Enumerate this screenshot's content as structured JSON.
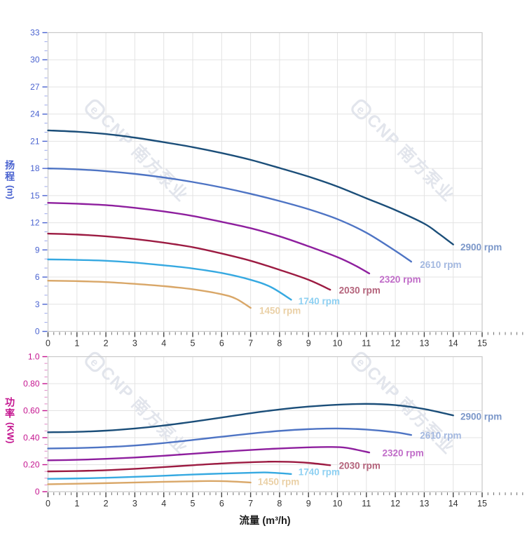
{
  "axes": {
    "flow_title": "流量 (m³/h)",
    "head_title": "扬程",
    "head_unit": "(m)",
    "power_title": "功率",
    "power_unit": "(KW)"
  },
  "watermark": {
    "logo_letter": "e",
    "text": "CNP 南方泵业",
    "color": "#e2e5ec"
  },
  "style": {
    "grid_color": "#e3e3e3",
    "border_color": "#c9c9c9",
    "x_tick_color": "#444444",
    "x_minor_tick_color": "#6e6e6e",
    "x_label_color": "#333333",
    "background": "#ffffff"
  },
  "chart_data": [
    {
      "type": "line",
      "title": "head_vs_flow",
      "xlabel": "流量 (m³/h)",
      "ylabel": "扬程 (m)",
      "x": {
        "min": 0,
        "max": 15,
        "major": 1,
        "minor": 0.2,
        "tick_labels": [
          "0",
          "1",
          "2",
          "3",
          "4",
          "5",
          "6",
          "7",
          "8",
          "9",
          "10",
          "11",
          "12",
          "13",
          "14",
          "15"
        ]
      },
      "y": {
        "min": 0,
        "max": 33,
        "major": 3,
        "minor": 1,
        "color": "#4a63d0",
        "minor_color": "#98a5ea",
        "tick_labels": [
          "0",
          "3",
          "6",
          "9",
          "12",
          "15",
          "18",
          "21",
          "24",
          "27",
          "30",
          "33"
        ]
      },
      "series": [
        {
          "name": "2900 rpm",
          "color": "#1b4e79",
          "label_color": "#7b97c9",
          "label_at": [
            14.25,
            9.3
          ],
          "points": [
            [
              0,
              22.2
            ],
            [
              1,
              22.05
            ],
            [
              2,
              21.8
            ],
            [
              3,
              21.4
            ],
            [
              4,
              20.9
            ],
            [
              5,
              20.35
            ],
            [
              6,
              19.7
            ],
            [
              7,
              18.95
            ],
            [
              8,
              18.05
            ],
            [
              9,
              17.1
            ],
            [
              10,
              16.0
            ],
            [
              11,
              14.7
            ],
            [
              12,
              13.4
            ],
            [
              13,
              11.9
            ],
            [
              13.5,
              10.8
            ],
            [
              14,
              9.6
            ]
          ]
        },
        {
          "name": "2610 rpm",
          "color": "#4e74c4",
          "label_color": "#a3b8e0",
          "label_at": [
            12.85,
            7.35
          ],
          "points": [
            [
              0,
              18.0
            ],
            [
              1,
              17.9
            ],
            [
              2,
              17.7
            ],
            [
              3,
              17.4
            ],
            [
              4,
              17.0
            ],
            [
              5,
              16.5
            ],
            [
              6,
              15.9
            ],
            [
              7,
              15.2
            ],
            [
              8,
              14.4
            ],
            [
              9,
              13.5
            ],
            [
              10,
              12.4
            ],
            [
              11,
              10.9
            ],
            [
              12,
              8.9
            ],
            [
              12.55,
              7.7
            ]
          ]
        },
        {
          "name": "2320 rpm",
          "color": "#8e1f9e",
          "label_color": "#c06cc8",
          "label_at": [
            11.45,
            5.75
          ],
          "points": [
            [
              0,
              14.2
            ],
            [
              1,
              14.1
            ],
            [
              2,
              13.95
            ],
            [
              3,
              13.65
            ],
            [
              4,
              13.25
            ],
            [
              5,
              12.75
            ],
            [
              6,
              12.1
            ],
            [
              7,
              11.4
            ],
            [
              8,
              10.5
            ],
            [
              9,
              9.4
            ],
            [
              10,
              8.2
            ],
            [
              10.6,
              7.3
            ],
            [
              11.1,
              6.4
            ]
          ]
        },
        {
          "name": "2030 rpm",
          "color": "#9c1b42",
          "label_color": "#b4637b",
          "label_at": [
            10.05,
            4.55
          ],
          "points": [
            [
              0,
              10.8
            ],
            [
              1,
              10.7
            ],
            [
              2,
              10.5
            ],
            [
              3,
              10.2
            ],
            [
              4,
              9.8
            ],
            [
              5,
              9.3
            ],
            [
              6,
              8.6
            ],
            [
              7,
              7.8
            ],
            [
              8,
              6.8
            ],
            [
              9,
              5.7
            ],
            [
              9.75,
              4.6
            ]
          ]
        },
        {
          "name": "1740 rpm",
          "color": "#36a9e1",
          "label_color": "#8ed0f2",
          "label_at": [
            8.65,
            3.35
          ],
          "points": [
            [
              0,
              7.95
            ],
            [
              1,
              7.9
            ],
            [
              2,
              7.8
            ],
            [
              3,
              7.6
            ],
            [
              4,
              7.3
            ],
            [
              5,
              6.95
            ],
            [
              6,
              6.45
            ],
            [
              7,
              5.7
            ],
            [
              7.7,
              4.9
            ],
            [
              8.4,
              3.5
            ]
          ]
        },
        {
          "name": "1450 rpm",
          "color": "#d9a768",
          "label_color": "#ead0a6",
          "label_at": [
            7.3,
            2.3
          ],
          "points": [
            [
              0,
              5.6
            ],
            [
              1,
              5.55
            ],
            [
              2,
              5.45
            ],
            [
              3,
              5.25
            ],
            [
              4,
              5.0
            ],
            [
              5,
              4.65
            ],
            [
              6,
              4.1
            ],
            [
              6.5,
              3.6
            ],
            [
              7,
              2.6
            ]
          ]
        }
      ]
    },
    {
      "type": "line",
      "title": "power_vs_flow",
      "xlabel": "流量 (m³/h)",
      "ylabel": "功率 (KW)",
      "x": {
        "min": 0,
        "max": 15,
        "major": 1,
        "minor": 0.2,
        "tick_labels": [
          "0",
          "1",
          "2",
          "3",
          "4",
          "5",
          "6",
          "7",
          "8",
          "9",
          "10",
          "11",
          "12",
          "13",
          "14",
          "15"
        ]
      },
      "y": {
        "min": 0,
        "max": 1.0,
        "major": 0.2,
        "minor": 0.05,
        "color": "#c4148f",
        "minor_color": "#df84c4",
        "tick_labels": [
          "0",
          "0.20",
          "0.40",
          "0.60",
          "0.80",
          "1.0"
        ]
      },
      "series": [
        {
          "name": "2900 rpm",
          "color": "#1b4e79",
          "label_color": "#7b97c9",
          "label_at": [
            14.25,
            0.555
          ],
          "points": [
            [
              0,
              0.44
            ],
            [
              1,
              0.443
            ],
            [
              2,
              0.452
            ],
            [
              3,
              0.468
            ],
            [
              4,
              0.49
            ],
            [
              5,
              0.518
            ],
            [
              6,
              0.549
            ],
            [
              7,
              0.581
            ],
            [
              8,
              0.609
            ],
            [
              9,
              0.63
            ],
            [
              10,
              0.644
            ],
            [
              11,
              0.65
            ],
            [
              12,
              0.641
            ],
            [
              13,
              0.612
            ],
            [
              14,
              0.565
            ]
          ]
        },
        {
          "name": "2610 rpm",
          "color": "#4e74c4",
          "label_color": "#a3b8e0",
          "label_at": [
            12.85,
            0.415
          ],
          "points": [
            [
              0,
              0.32
            ],
            [
              1,
              0.323
            ],
            [
              2,
              0.33
            ],
            [
              3,
              0.342
            ],
            [
              4,
              0.36
            ],
            [
              5,
              0.383
            ],
            [
              6,
              0.407
            ],
            [
              7,
              0.43
            ],
            [
              8,
              0.45
            ],
            [
              9,
              0.463
            ],
            [
              10,
              0.468
            ],
            [
              11,
              0.46
            ],
            [
              12,
              0.44
            ],
            [
              12.55,
              0.42
            ]
          ]
        },
        {
          "name": "2320 rpm",
          "color": "#8e1f9e",
          "label_color": "#c06cc8",
          "label_at": [
            11.55,
            0.285
          ],
          "points": [
            [
              0,
              0.232
            ],
            [
              1,
              0.236
            ],
            [
              2,
              0.243
            ],
            [
              3,
              0.253
            ],
            [
              4,
              0.266
            ],
            [
              5,
              0.281
            ],
            [
              6,
              0.296
            ],
            [
              7,
              0.309
            ],
            [
              8,
              0.32
            ],
            [
              9,
              0.328
            ],
            [
              9.7,
              0.331
            ],
            [
              10.3,
              0.325
            ],
            [
              11.1,
              0.29
            ]
          ]
        },
        {
          "name": "2030 rpm",
          "color": "#9c1b42",
          "label_color": "#b4637b",
          "label_at": [
            10.05,
            0.193
          ],
          "points": [
            [
              0,
              0.15
            ],
            [
              1,
              0.153
            ],
            [
              2,
              0.159
            ],
            [
              3,
              0.169
            ],
            [
              4,
              0.182
            ],
            [
              5,
              0.196
            ],
            [
              6,
              0.209
            ],
            [
              7,
              0.218
            ],
            [
              7.6,
              0.222
            ],
            [
              8.3,
              0.221
            ],
            [
              9,
              0.213
            ],
            [
              9.75,
              0.196
            ]
          ]
        },
        {
          "name": "1740 rpm",
          "color": "#36a9e1",
          "label_color": "#8ed0f2",
          "label_at": [
            8.65,
            0.145
          ],
          "points": [
            [
              0,
              0.095
            ],
            [
              1,
              0.098
            ],
            [
              2,
              0.103
            ],
            [
              3,
              0.11
            ],
            [
              4,
              0.118
            ],
            [
              5,
              0.127
            ],
            [
              6,
              0.134
            ],
            [
              7,
              0.14
            ],
            [
              7.6,
              0.142
            ],
            [
              8.4,
              0.131
            ]
          ]
        },
        {
          "name": "1450 rpm",
          "color": "#d9a768",
          "label_color": "#ead0a6",
          "label_at": [
            7.25,
            0.073
          ],
          "points": [
            [
              0,
              0.055
            ],
            [
              1,
              0.059
            ],
            [
              2,
              0.063
            ],
            [
              3,
              0.068
            ],
            [
              4,
              0.073
            ],
            [
              5,
              0.077
            ],
            [
              5.6,
              0.079
            ],
            [
              6.2,
              0.077
            ],
            [
              7,
              0.068
            ]
          ]
        }
      ]
    }
  ]
}
